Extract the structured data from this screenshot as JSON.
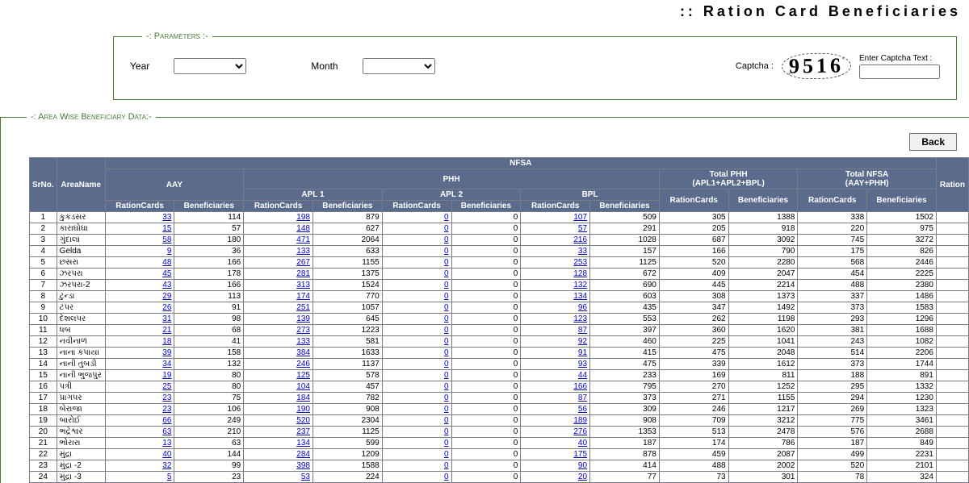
{
  "header": {
    "title": ":: Ration Card Beneficiaries"
  },
  "params": {
    "legend": "-: Parameters :-",
    "year_label": "Year",
    "month_label": "Month",
    "captcha_label": "Captcha :",
    "captcha_value": "9516",
    "captcha_input_label": "Enter Captcha Text :"
  },
  "data_section": {
    "legend": "-: Area Wise Beneficiary Data:-",
    "back_label": "Back"
  },
  "table": {
    "group_headers": {
      "nfsa": "NFSA",
      "aay": "AAY",
      "phh": "PHH",
      "apl1": "APL 1",
      "apl2": "APL 2",
      "bpl": "BPL",
      "total_phh": "Total PHH",
      "total_phh_sub": "(APL1+APL2+BPL)",
      "total_nfsa": "Total NFSA",
      "total_nfsa_sub": "(AAY+PHH)"
    },
    "col_headers": {
      "srno": "SrNo.",
      "area": "AreaName",
      "rc": "RationCards",
      "ben": "Beneficiaries",
      "ration_cut": "Ration"
    },
    "rows": [
      {
        "sr": 1,
        "area": "કુકડસર",
        "aay_rc": 33,
        "aay_b": 114,
        "a1_rc": 198,
        "a1_b": 879,
        "a2_rc": 0,
        "a2_b": 0,
        "bpl_rc": 107,
        "bpl_b": 509,
        "tp_rc": 305,
        "tp_b": 1388,
        "tn_rc": 338,
        "tn_b": 1502
      },
      {
        "sr": 2,
        "area": "કારાઘોઘા",
        "aay_rc": 15,
        "aay_b": 57,
        "a1_rc": 148,
        "a1_b": 627,
        "a2_rc": 0,
        "a2_b": 0,
        "bpl_rc": 57,
        "bpl_b": 291,
        "tp_rc": 205,
        "tp_b": 918,
        "tn_rc": 220,
        "tn_b": 975
      },
      {
        "sr": 3,
        "area": "ગુંદાલા",
        "aay_rc": 58,
        "aay_b": 180,
        "a1_rc": 471,
        "a1_b": 2064,
        "a2_rc": 0,
        "a2_b": 0,
        "bpl_rc": 216,
        "bpl_b": 1028,
        "tp_rc": 687,
        "tp_b": 3092,
        "tn_rc": 745,
        "tn_b": 3272
      },
      {
        "sr": 4,
        "area": "Gelda",
        "aay_rc": 9,
        "aay_b": 36,
        "a1_rc": 133,
        "a1_b": 633,
        "a2_rc": 0,
        "a2_b": 0,
        "bpl_rc": 33,
        "bpl_b": 157,
        "tp_rc": 166,
        "tp_b": 790,
        "tn_rc": 175,
        "tn_b": 826
      },
      {
        "sr": 5,
        "area": "છસરા",
        "aay_rc": 48,
        "aay_b": 166,
        "a1_rc": 267,
        "a1_b": 1155,
        "a2_rc": 0,
        "a2_b": 0,
        "bpl_rc": 253,
        "bpl_b": 1125,
        "tp_rc": 520,
        "tp_b": 2280,
        "tn_rc": 568,
        "tn_b": 2446
      },
      {
        "sr": 6,
        "area": "ઝરપરા",
        "aay_rc": 45,
        "aay_b": 178,
        "a1_rc": 281,
        "a1_b": 1375,
        "a2_rc": 0,
        "a2_b": 0,
        "bpl_rc": 128,
        "bpl_b": 672,
        "tp_rc": 409,
        "tp_b": 2047,
        "tn_rc": 454,
        "tn_b": 2225
      },
      {
        "sr": 7,
        "area": "ઝરપરા-2",
        "aay_rc": 43,
        "aay_b": 166,
        "a1_rc": 313,
        "a1_b": 1524,
        "a2_rc": 0,
        "a2_b": 0,
        "bpl_rc": 132,
        "bpl_b": 690,
        "tp_rc": 445,
        "tp_b": 2214,
        "tn_rc": 488,
        "tn_b": 2380
      },
      {
        "sr": 8,
        "area": "ટુન્ડા",
        "aay_rc": 29,
        "aay_b": 113,
        "a1_rc": 174,
        "a1_b": 770,
        "a2_rc": 0,
        "a2_b": 0,
        "bpl_rc": 134,
        "bpl_b": 603,
        "tp_rc": 308,
        "tp_b": 1373,
        "tn_rc": 337,
        "tn_b": 1486
      },
      {
        "sr": 9,
        "area": "ટપર",
        "aay_rc": 26,
        "aay_b": 91,
        "a1_rc": 251,
        "a1_b": 1057,
        "a2_rc": 0,
        "a2_b": 0,
        "bpl_rc": 96,
        "bpl_b": 435,
        "tp_rc": 347,
        "tp_b": 1492,
        "tn_rc": 373,
        "tn_b": 1583
      },
      {
        "sr": 10,
        "area": "દેશલપર",
        "aay_rc": 31,
        "aay_b": 98,
        "a1_rc": 139,
        "a1_b": 645,
        "a2_rc": 0,
        "a2_b": 0,
        "bpl_rc": 123,
        "bpl_b": 553,
        "tp_rc": 262,
        "tp_b": 1198,
        "tn_rc": 293,
        "tn_b": 1296
      },
      {
        "sr": 11,
        "area": "ધબ",
        "aay_rc": 21,
        "aay_b": 68,
        "a1_rc": 273,
        "a1_b": 1223,
        "a2_rc": 0,
        "a2_b": 0,
        "bpl_rc": 87,
        "bpl_b": 397,
        "tp_rc": 360,
        "tp_b": 1620,
        "tn_rc": 381,
        "tn_b": 1688
      },
      {
        "sr": 12,
        "area": "નવીનાળ",
        "aay_rc": 18,
        "aay_b": 41,
        "a1_rc": 133,
        "a1_b": 581,
        "a2_rc": 0,
        "a2_b": 0,
        "bpl_rc": 92,
        "bpl_b": 460,
        "tp_rc": 225,
        "tp_b": 1041,
        "tn_rc": 243,
        "tn_b": 1082
      },
      {
        "sr": 13,
        "area": "નાના કપાયા",
        "aay_rc": 39,
        "aay_b": 158,
        "a1_rc": 384,
        "a1_b": 1633,
        "a2_rc": 0,
        "a2_b": 0,
        "bpl_rc": 91,
        "bpl_b": 415,
        "tp_rc": 475,
        "tp_b": 2048,
        "tn_rc": 514,
        "tn_b": 2206
      },
      {
        "sr": 14,
        "area": "નાની તુંબડી",
        "aay_rc": 34,
        "aay_b": 132,
        "a1_rc": 246,
        "a1_b": 1137,
        "a2_rc": 0,
        "a2_b": 0,
        "bpl_rc": 93,
        "bpl_b": 475,
        "tp_rc": 339,
        "tp_b": 1612,
        "tn_rc": 373,
        "tn_b": 1744
      },
      {
        "sr": 15,
        "area": "નાની ભુજપુર",
        "aay_rc": 19,
        "aay_b": 80,
        "a1_rc": 125,
        "a1_b": 578,
        "a2_rc": 0,
        "a2_b": 0,
        "bpl_rc": 44,
        "bpl_b": 233,
        "tp_rc": 169,
        "tp_b": 811,
        "tn_rc": 188,
        "tn_b": 891
      },
      {
        "sr": 16,
        "area": "પત્રી",
        "aay_rc": 25,
        "aay_b": 80,
        "a1_rc": 104,
        "a1_b": 457,
        "a2_rc": 0,
        "a2_b": 0,
        "bpl_rc": 166,
        "bpl_b": 795,
        "tp_rc": 270,
        "tp_b": 1252,
        "tn_rc": 295,
        "tn_b": 1332
      },
      {
        "sr": 17,
        "area": "પ્રાગપર",
        "aay_rc": 23,
        "aay_b": 75,
        "a1_rc": 184,
        "a1_b": 782,
        "a2_rc": 0,
        "a2_b": 0,
        "bpl_rc": 87,
        "bpl_b": 373,
        "tp_rc": 271,
        "tp_b": 1155,
        "tn_rc": 294,
        "tn_b": 1230
      },
      {
        "sr": 18,
        "area": "બેરાજા",
        "aay_rc": 23,
        "aay_b": 106,
        "a1_rc": 190,
        "a1_b": 908,
        "a2_rc": 0,
        "a2_b": 0,
        "bpl_rc": 56,
        "bpl_b": 309,
        "tp_rc": 246,
        "tp_b": 1217,
        "tn_rc": 269,
        "tn_b": 1323
      },
      {
        "sr": 19,
        "area": "બારોઈ",
        "aay_rc": 66,
        "aay_b": 249,
        "a1_rc": 520,
        "a1_b": 2304,
        "a2_rc": 0,
        "a2_b": 0,
        "bpl_rc": 189,
        "bpl_b": 908,
        "tp_rc": 709,
        "tp_b": 3212,
        "tn_rc": 775,
        "tn_b": 3461
      },
      {
        "sr": 20,
        "area": "ભદ્રેશ્વર",
        "aay_rc": 63,
        "aay_b": 210,
        "a1_rc": 237,
        "a1_b": 1125,
        "a2_rc": 0,
        "a2_b": 0,
        "bpl_rc": 276,
        "bpl_b": 1353,
        "tp_rc": 513,
        "tp_b": 2478,
        "tn_rc": 576,
        "tn_b": 2688
      },
      {
        "sr": 21,
        "area": "ભોરારા",
        "aay_rc": 13,
        "aay_b": 63,
        "a1_rc": 134,
        "a1_b": 599,
        "a2_rc": 0,
        "a2_b": 0,
        "bpl_rc": 40,
        "bpl_b": 187,
        "tp_rc": 174,
        "tp_b": 786,
        "tn_rc": 187,
        "tn_b": 849
      },
      {
        "sr": 22,
        "area": "મુંદ્રા",
        "aay_rc": 40,
        "aay_b": 144,
        "a1_rc": 284,
        "a1_b": 1209,
        "a2_rc": 0,
        "a2_b": 0,
        "bpl_rc": 175,
        "bpl_b": 878,
        "tp_rc": 459,
        "tp_b": 2087,
        "tn_rc": 499,
        "tn_b": 2231
      },
      {
        "sr": 23,
        "area": "મુંદ્રા -2",
        "aay_rc": 32,
        "aay_b": 99,
        "a1_rc": 398,
        "a1_b": 1588,
        "a2_rc": 0,
        "a2_b": 0,
        "bpl_rc": 90,
        "bpl_b": 414,
        "tp_rc": 488,
        "tp_b": 2002,
        "tn_rc": 520,
        "tn_b": 2101
      },
      {
        "sr": 24,
        "area": "મુંદ્રા -3",
        "aay_rc": 5,
        "aay_b": 23,
        "a1_rc": 53,
        "a1_b": 224,
        "a2_rc": 0,
        "a2_b": 0,
        "bpl_rc": 20,
        "bpl_b": 77,
        "tp_rc": 73,
        "tp_b": 301,
        "tn_rc": 78,
        "tn_b": 324
      }
    ]
  }
}
